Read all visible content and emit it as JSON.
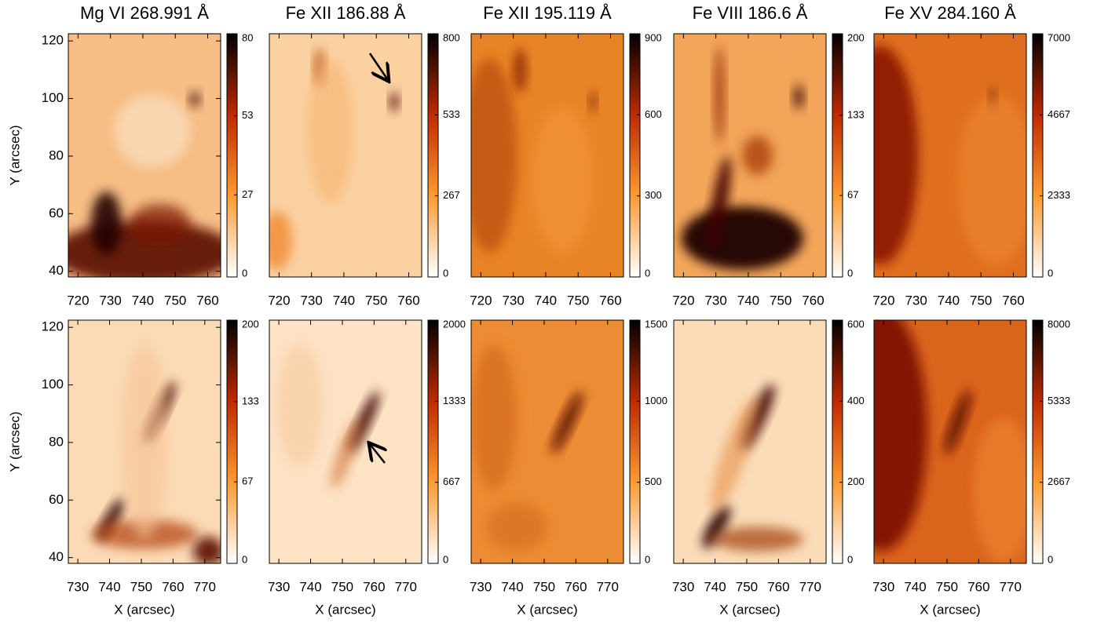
{
  "chart_data": [
    {
      "type": "heatmap",
      "title": "Mg VI 268.991 Å",
      "ylabel": "Y (arcsec)",
      "xlim": [
        717,
        764
      ],
      "xticks": [
        720,
        730,
        740,
        750,
        760
      ],
      "ylim": [
        38,
        122.5
      ],
      "yticks": [
        40,
        60,
        80,
        100,
        120
      ],
      "clim": [
        0,
        80
      ],
      "cticks": [
        0,
        27,
        53,
        80
      ],
      "color": "#f6bd85",
      "colormap": [
        "#ffffff",
        "#ff9a30",
        "#c02a00",
        "#000000"
      ]
    },
    {
      "type": "heatmap",
      "title": "Fe XII 186.88 Å",
      "xlim": [
        717,
        764
      ],
      "xticks": [
        720,
        730,
        740,
        750,
        760
      ],
      "clim": [
        0,
        800
      ],
      "cticks": [
        0,
        267,
        533,
        800
      ],
      "color": "#fbd1a2",
      "colormap": [
        "#ffffff",
        "#ff9a30",
        "#c02a00",
        "#000000"
      ]
    },
    {
      "type": "heatmap",
      "title": "Fe XII 195.119 Å",
      "xlim": [
        717,
        764
      ],
      "xticks": [
        720,
        730,
        740,
        750,
        760
      ],
      "clim": [
        0,
        900
      ],
      "cticks": [
        0,
        300,
        600,
        900
      ],
      "color": "#e98426",
      "colormap": [
        "#ffffff",
        "#ff9a30",
        "#c02a00",
        "#000000"
      ]
    },
    {
      "type": "heatmap",
      "title": "Fe VIII 186.6 Å",
      "xlim": [
        717,
        764
      ],
      "xticks": [
        720,
        730,
        740,
        750,
        760
      ],
      "clim": [
        0,
        200
      ],
      "cticks": [
        0,
        67,
        133,
        200
      ],
      "color": "#f3a55a",
      "colormap": [
        "#ffffff",
        "#ff9a30",
        "#c02a00",
        "#000000"
      ]
    },
    {
      "type": "heatmap",
      "title": "Fe XV 284.160 Å",
      "xlim": [
        717,
        764
      ],
      "xticks": [
        720,
        730,
        740,
        750,
        760
      ],
      "clim": [
        0,
        7000
      ],
      "cticks": [
        0,
        2333,
        4667,
        7000
      ],
      "color": "#df6f1f",
      "colormap": [
        "#ffffff",
        "#ff9a30",
        "#c02a00",
        "#000000"
      ]
    },
    {
      "type": "heatmap",
      "xlabel": "X (arcsec)",
      "ylabel": "Y (arcsec)",
      "xlim": [
        727,
        775
      ],
      "xticks": [
        730,
        740,
        750,
        760,
        770
      ],
      "ylim": [
        38,
        122.5
      ],
      "yticks": [
        40,
        60,
        80,
        100,
        120
      ],
      "clim": [
        0,
        200
      ],
      "cticks": [
        0,
        67,
        133,
        200
      ],
      "color": "#fbdab5",
      "colormap": [
        "#ffffff",
        "#ff9a30",
        "#c02a00",
        "#000000"
      ]
    },
    {
      "type": "heatmap",
      "xlabel": "X (arcsec)",
      "xlim": [
        727,
        775
      ],
      "xticks": [
        730,
        740,
        750,
        760,
        770
      ],
      "clim": [
        0,
        2000
      ],
      "cticks": [
        0,
        667,
        1333,
        2000
      ],
      "color": "#fde2c4",
      "colormap": [
        "#ffffff",
        "#ff9a30",
        "#c02a00",
        "#000000"
      ]
    },
    {
      "type": "heatmap",
      "xlabel": "X (arcsec)",
      "xlim": [
        727,
        775
      ],
      "xticks": [
        730,
        740,
        750,
        760,
        770
      ],
      "clim": [
        0,
        1500
      ],
      "cticks": [
        0,
        500,
        1000,
        1500
      ],
      "color": "#ec8c34",
      "colormap": [
        "#ffffff",
        "#ff9a30",
        "#c02a00",
        "#000000"
      ]
    },
    {
      "type": "heatmap",
      "xlabel": "X (arcsec)",
      "xlim": [
        727,
        775
      ],
      "xticks": [
        730,
        740,
        750,
        760,
        770
      ],
      "clim": [
        0,
        600
      ],
      "cticks": [
        0,
        200,
        400,
        600
      ],
      "color": "#fbdcb8",
      "colormap": [
        "#ffffff",
        "#ff9a30",
        "#c02a00",
        "#000000"
      ]
    },
    {
      "type": "heatmap",
      "xlabel": "X (arcsec)",
      "xlim": [
        727,
        775
      ],
      "xticks": [
        730,
        740,
        750,
        760,
        770
      ],
      "clim": [
        0,
        8000
      ],
      "cticks": [
        0,
        2667,
        5333,
        8000
      ],
      "color": "#da641c",
      "colormap": [
        "#ffffff",
        "#ff9a30",
        "#c02a00",
        "#000000"
      ]
    }
  ]
}
